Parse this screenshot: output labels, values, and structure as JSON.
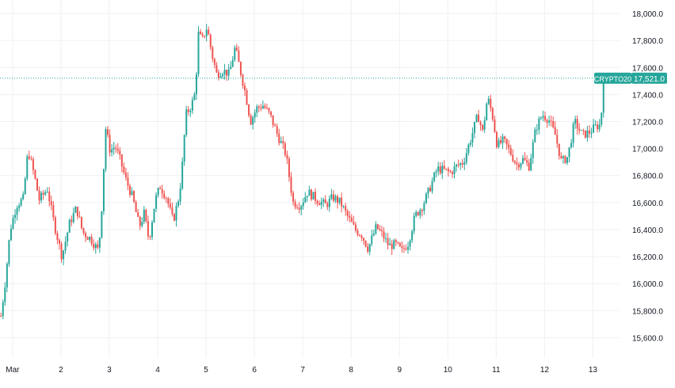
{
  "chart_data": {
    "type": "candlestick",
    "symbol": "CRYPTO20",
    "last_price": 17521.0,
    "last_price_label": "17,521.0",
    "ylim": [
      15450,
      18100
    ],
    "y_ticks": [
      15600,
      15800,
      16000,
      16200,
      16400,
      16600,
      16800,
      17000,
      17200,
      17400,
      17600,
      17800,
      18000
    ],
    "y_tick_labels": [
      "15,600.0",
      "15,800.0",
      "16,000.0",
      "16,200.0",
      "16,400.0",
      "16,600.0",
      "16,800.0",
      "17,000.0",
      "17,200.0",
      "17,400.0",
      "17,600.0",
      "17,800.0",
      "18,000.0"
    ],
    "x_ticks": [
      {
        "label": "Mar",
        "day": 1.0
      },
      {
        "label": "2",
        "day": 2.0
      },
      {
        "label": "3",
        "day": 3.0
      },
      {
        "label": "4",
        "day": 4.0
      },
      {
        "label": "5",
        "day": 5.0
      },
      {
        "label": "6",
        "day": 6.0
      },
      {
        "label": "7",
        "day": 7.0
      },
      {
        "label": "8",
        "day": 8.0
      },
      {
        "label": "9",
        "day": 9.0
      },
      {
        "label": "10",
        "day": 10.0
      },
      {
        "label": "11",
        "day": 11.0
      },
      {
        "label": "12",
        "day": 12.0
      },
      {
        "label": "13",
        "day": 13.0
      }
    ],
    "x_range_days": [
      0.74,
      13.55
    ],
    "colors": {
      "up": "#26a69a",
      "down": "#ef5350",
      "grid": "#eef0f3",
      "axis_text": "#131722",
      "price_line": "#26a69a",
      "label_bg": "#26a69a",
      "label_text": "#ffffff"
    },
    "anchors": [
      {
        "day": 0.76,
        "price": 15760,
        "dir": 1
      },
      {
        "day": 0.85,
        "price": 16020,
        "dir": 1
      },
      {
        "day": 0.95,
        "price": 16400,
        "dir": 1
      },
      {
        "day": 1.08,
        "price": 16580,
        "dir": 1
      },
      {
        "day": 1.22,
        "price": 16630,
        "dir": 1
      },
      {
        "day": 1.32,
        "price": 16990,
        "dir": 1
      },
      {
        "day": 1.45,
        "price": 16800,
        "dir": -1
      },
      {
        "day": 1.55,
        "price": 16620,
        "dir": -1
      },
      {
        "day": 1.72,
        "price": 16700,
        "dir": 1
      },
      {
        "day": 1.85,
        "price": 16460,
        "dir": -1
      },
      {
        "day": 2.02,
        "price": 16200,
        "dir": -1
      },
      {
        "day": 2.18,
        "price": 16450,
        "dir": 1
      },
      {
        "day": 2.32,
        "price": 16560,
        "dir": 1
      },
      {
        "day": 2.45,
        "price": 16380,
        "dir": -1
      },
      {
        "day": 2.62,
        "price": 16330,
        "dir": -1
      },
      {
        "day": 2.78,
        "price": 16240,
        "dir": -1
      },
      {
        "day": 2.86,
        "price": 16650,
        "dir": 1
      },
      {
        "day": 2.92,
        "price": 17160,
        "dir": 1
      },
      {
        "day": 3.02,
        "price": 16980,
        "dir": -1
      },
      {
        "day": 3.12,
        "price": 17020,
        "dir": 1
      },
      {
        "day": 3.22,
        "price": 16920,
        "dir": -1
      },
      {
        "day": 3.35,
        "price": 16760,
        "dir": -1
      },
      {
        "day": 3.48,
        "price": 16640,
        "dir": -1
      },
      {
        "day": 3.62,
        "price": 16420,
        "dir": -1
      },
      {
        "day": 3.72,
        "price": 16520,
        "dir": 1
      },
      {
        "day": 3.82,
        "price": 16320,
        "dir": -1
      },
      {
        "day": 3.95,
        "price": 16620,
        "dir": 1
      },
      {
        "day": 4.05,
        "price": 16720,
        "dir": 1
      },
      {
        "day": 4.18,
        "price": 16640,
        "dir": -1
      },
      {
        "day": 4.32,
        "price": 16460,
        "dir": -1
      },
      {
        "day": 4.45,
        "price": 16660,
        "dir": 1
      },
      {
        "day": 4.52,
        "price": 16920,
        "dir": 1
      },
      {
        "day": 4.58,
        "price": 17250,
        "dir": 1
      },
      {
        "day": 4.7,
        "price": 17320,
        "dir": 1
      },
      {
        "day": 4.78,
        "price": 17420,
        "dir": 1
      },
      {
        "day": 4.84,
        "price": 17850,
        "dir": 1
      },
      {
        "day": 4.92,
        "price": 17800,
        "dir": -1
      },
      {
        "day": 5.02,
        "price": 17900,
        "dir": 1
      },
      {
        "day": 5.12,
        "price": 17700,
        "dir": -1
      },
      {
        "day": 5.22,
        "price": 17550,
        "dir": -1
      },
      {
        "day": 5.35,
        "price": 17580,
        "dir": 1
      },
      {
        "day": 5.48,
        "price": 17550,
        "dir": -1
      },
      {
        "day": 5.6,
        "price": 17750,
        "dir": 1
      },
      {
        "day": 5.72,
        "price": 17560,
        "dir": -1
      },
      {
        "day": 5.82,
        "price": 17400,
        "dir": -1
      },
      {
        "day": 5.92,
        "price": 17200,
        "dir": -1
      },
      {
        "day": 6.05,
        "price": 17300,
        "dir": 1
      },
      {
        "day": 6.18,
        "price": 17320,
        "dir": 1
      },
      {
        "day": 6.32,
        "price": 17250,
        "dir": -1
      },
      {
        "day": 6.48,
        "price": 17100,
        "dir": -1
      },
      {
        "day": 6.65,
        "price": 16960,
        "dir": -1
      },
      {
        "day": 6.8,
        "price": 16600,
        "dir": -1
      },
      {
        "day": 6.95,
        "price": 16580,
        "dir": -1
      },
      {
        "day": 7.1,
        "price": 16680,
        "dir": 1
      },
      {
        "day": 7.3,
        "price": 16620,
        "dir": -1
      },
      {
        "day": 7.48,
        "price": 16580,
        "dir": -1
      },
      {
        "day": 7.62,
        "price": 16640,
        "dir": 1
      },
      {
        "day": 7.78,
        "price": 16600,
        "dir": -1
      },
      {
        "day": 7.92,
        "price": 16500,
        "dir": -1
      },
      {
        "day": 8.08,
        "price": 16400,
        "dir": -1
      },
      {
        "day": 8.22,
        "price": 16360,
        "dir": -1
      },
      {
        "day": 8.35,
        "price": 16260,
        "dir": -1
      },
      {
        "day": 8.52,
        "price": 16420,
        "dir": 1
      },
      {
        "day": 8.65,
        "price": 16360,
        "dir": -1
      },
      {
        "day": 8.78,
        "price": 16280,
        "dir": -1
      },
      {
        "day": 8.92,
        "price": 16290,
        "dir": 1
      },
      {
        "day": 9.05,
        "price": 16240,
        "dir": -1
      },
      {
        "day": 9.18,
        "price": 16300,
        "dir": 1
      },
      {
        "day": 9.32,
        "price": 16500,
        "dir": 1
      },
      {
        "day": 9.48,
        "price": 16580,
        "dir": 1
      },
      {
        "day": 9.62,
        "price": 16700,
        "dir": 1
      },
      {
        "day": 9.78,
        "price": 16850,
        "dir": 1
      },
      {
        "day": 9.92,
        "price": 16840,
        "dir": -1
      },
      {
        "day": 10.05,
        "price": 16820,
        "dir": -1
      },
      {
        "day": 10.18,
        "price": 16870,
        "dir": 1
      },
      {
        "day": 10.32,
        "price": 16900,
        "dir": 1
      },
      {
        "day": 10.48,
        "price": 17080,
        "dir": 1
      },
      {
        "day": 10.62,
        "price": 17250,
        "dir": 1
      },
      {
        "day": 10.72,
        "price": 17120,
        "dir": -1
      },
      {
        "day": 10.82,
        "price": 17380,
        "dir": 1
      },
      {
        "day": 10.92,
        "price": 17250,
        "dir": -1
      },
      {
        "day": 11.02,
        "price": 17020,
        "dir": -1
      },
      {
        "day": 11.15,
        "price": 17060,
        "dir": 1
      },
      {
        "day": 11.28,
        "price": 16980,
        "dir": -1
      },
      {
        "day": 11.42,
        "price": 16880,
        "dir": -1
      },
      {
        "day": 11.55,
        "price": 16920,
        "dir": 1
      },
      {
        "day": 11.68,
        "price": 16870,
        "dir": -1
      },
      {
        "day": 11.82,
        "price": 17150,
        "dir": 1
      },
      {
        "day": 11.95,
        "price": 17250,
        "dir": 1
      },
      {
        "day": 12.08,
        "price": 17220,
        "dir": -1
      },
      {
        "day": 12.22,
        "price": 17100,
        "dir": -1
      },
      {
        "day": 12.35,
        "price": 16900,
        "dir": -1
      },
      {
        "day": 12.48,
        "price": 16940,
        "dir": 1
      },
      {
        "day": 12.62,
        "price": 17200,
        "dir": 1
      },
      {
        "day": 12.78,
        "price": 17100,
        "dir": -1
      },
      {
        "day": 12.92,
        "price": 17120,
        "dir": 1
      },
      {
        "day": 13.05,
        "price": 17160,
        "dir": 1
      },
      {
        "day": 13.16,
        "price": 17180,
        "dir": 1
      },
      {
        "day": 13.22,
        "price": 17521,
        "dir": 1
      }
    ]
  }
}
